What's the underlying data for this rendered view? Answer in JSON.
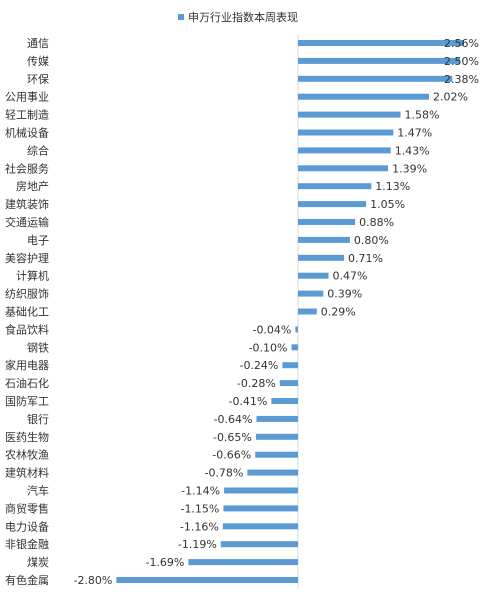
{
  "chart_data": {
    "type": "bar",
    "orientation": "horizontal",
    "title": "",
    "legend": {
      "label": "申万行业指数本周表现",
      "position": "top"
    },
    "xlim": [
      -2.8,
      2.56
    ],
    "series": [
      {
        "name": "申万行业指数本周表现",
        "color": "#5B9BD5",
        "categories": [
          "通信",
          "传媒",
          "环保",
          "公用事业",
          "轻工制造",
          "机械设备",
          "综合",
          "社会服务",
          "房地产",
          "建筑装饰",
          "交通运输",
          "电子",
          "美容护理",
          "计算机",
          "纺织服饰",
          "基础化工",
          "食品饮料",
          "钢铁",
          "家用电器",
          "石油石化",
          "国防军工",
          "银行",
          "医药生物",
          "农林牧渔",
          "建筑材料",
          "汽车",
          "商贸零售",
          "电力设备",
          "非银金融",
          "煤炭",
          "有色金属"
        ],
        "values": [
          2.56,
          2.5,
          2.38,
          2.02,
          1.58,
          1.47,
          1.43,
          1.39,
          1.13,
          1.05,
          0.88,
          0.8,
          0.71,
          0.47,
          0.39,
          0.29,
          -0.04,
          -0.1,
          -0.24,
          -0.28,
          -0.41,
          -0.64,
          -0.65,
          -0.66,
          -0.78,
          -1.14,
          -1.15,
          -1.16,
          -1.19,
          -1.69,
          -2.8
        ],
        "labels": [
          "2.56%",
          "2.50%",
          "2.38%",
          "2.02%",
          "1.58%",
          "1.47%",
          "1.43%",
          "1.39%",
          "1.13%",
          "1.05%",
          "0.88%",
          "0.80%",
          "0.71%",
          "0.47%",
          "0.39%",
          "0.29%",
          "-0.04%",
          "-0.10%",
          "-0.24%",
          "-0.28%",
          "-0.41%",
          "-0.64%",
          "-0.65%",
          "-0.66%",
          "-0.78%",
          "-1.14%",
          "-1.15%",
          "-1.16%",
          "-1.19%",
          "-1.69%",
          "-2.80%"
        ]
      }
    ]
  }
}
